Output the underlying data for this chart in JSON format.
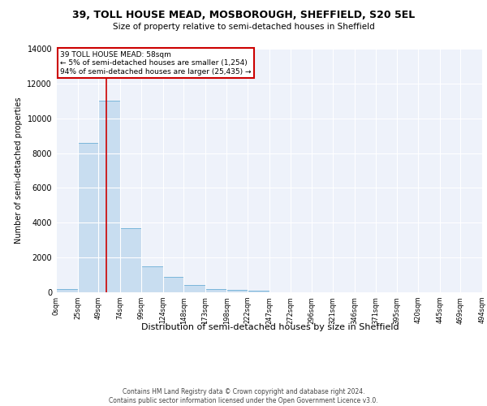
{
  "title1": "39, TOLL HOUSE MEAD, MOSBOROUGH, SHEFFIELD, S20 5EL",
  "title2": "Size of property relative to semi-detached houses in Sheffield",
  "xlabel": "Distribution of semi-detached houses by size in Sheffield",
  "ylabel": "Number of semi-detached properties",
  "footer1": "Contains HM Land Registry data © Crown copyright and database right 2024.",
  "footer2": "Contains public sector information licensed under the Open Government Licence v3.0.",
  "annotation_title": "39 TOLL HOUSE MEAD: 58sqm",
  "annotation_line1": "← 5% of semi-detached houses are smaller (1,254)",
  "annotation_line2": "94% of semi-detached houses are larger (25,435) →",
  "property_size": 58,
  "bin_edges": [
    0,
    25,
    49,
    74,
    99,
    124,
    148,
    173,
    198,
    222,
    247,
    272,
    296,
    321,
    346,
    371,
    395,
    420,
    445,
    469,
    494
  ],
  "bar_heights": [
    200,
    8600,
    11000,
    3700,
    1500,
    900,
    400,
    200,
    150,
    80,
    0,
    0,
    0,
    0,
    0,
    0,
    0,
    0,
    0,
    0
  ],
  "bar_color": "#c8ddf0",
  "bar_edge_color": "#6baed6",
  "line_color": "#cc0000",
  "background_color": "#eef2fa",
  "ylim": [
    0,
    14000
  ],
  "yticks": [
    0,
    2000,
    4000,
    6000,
    8000,
    10000,
    12000,
    14000
  ]
}
